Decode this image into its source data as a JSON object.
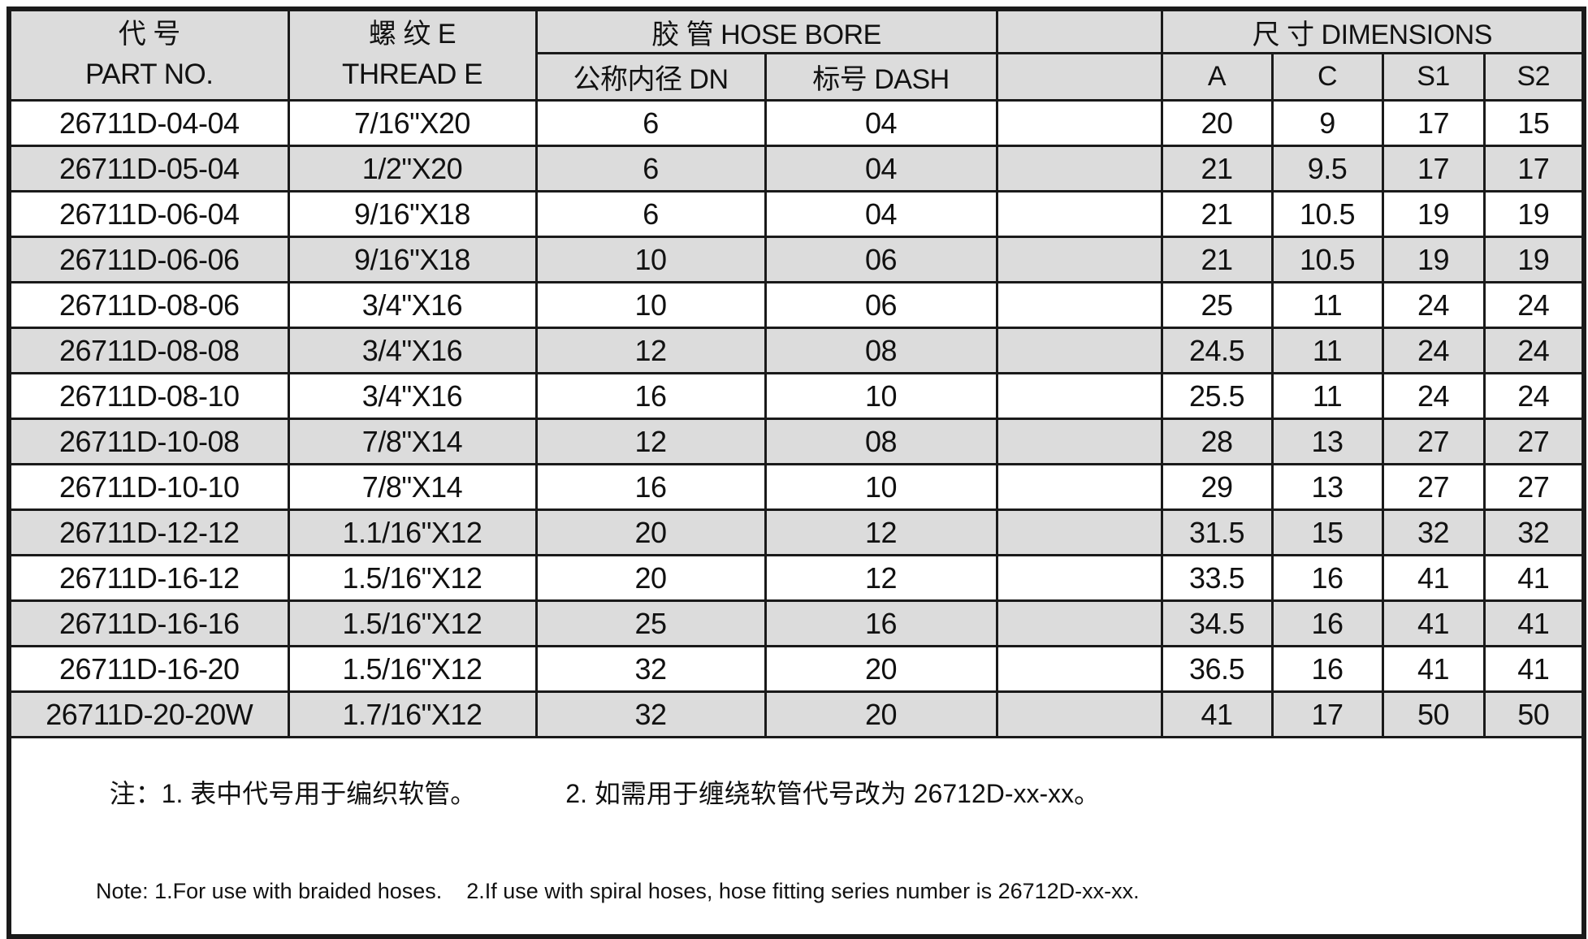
{
  "table": {
    "header": {
      "part_no_zh": "代  号",
      "part_no_en": "PART NO.",
      "thread_zh": "螺  纹 E",
      "thread_en": "THREAD E",
      "hose_bore": "胶  管 HOSE BORE",
      "dimensions": "尺 寸  DIMENSIONS",
      "dn": "公称内径 DN",
      "dash": "标号 DASH",
      "a": "A",
      "c": "C",
      "s1": "S1",
      "s2": "S2"
    },
    "rows": [
      {
        "part": "26711D-04-04",
        "thread": "7/16\"X20",
        "dn": "6",
        "dash": "04",
        "a": "20",
        "c": "9",
        "s1": "17",
        "s2": "15"
      },
      {
        "part": "26711D-05-04",
        "thread": "1/2\"X20",
        "dn": "6",
        "dash": "04",
        "a": "21",
        "c": "9.5",
        "s1": "17",
        "s2": "17"
      },
      {
        "part": "26711D-06-04",
        "thread": "9/16\"X18",
        "dn": "6",
        "dash": "04",
        "a": "21",
        "c": "10.5",
        "s1": "19",
        "s2": "19"
      },
      {
        "part": "26711D-06-06",
        "thread": "9/16\"X18",
        "dn": "10",
        "dash": "06",
        "a": "21",
        "c": "10.5",
        "s1": "19",
        "s2": "19"
      },
      {
        "part": "26711D-08-06",
        "thread": "3/4\"X16",
        "dn": "10",
        "dash": "06",
        "a": "25",
        "c": "11",
        "s1": "24",
        "s2": "24"
      },
      {
        "part": "26711D-08-08",
        "thread": "3/4\"X16",
        "dn": "12",
        "dash": "08",
        "a": "24.5",
        "c": "11",
        "s1": "24",
        "s2": "24"
      },
      {
        "part": "26711D-08-10",
        "thread": "3/4\"X16",
        "dn": "16",
        "dash": "10",
        "a": "25.5",
        "c": "11",
        "s1": "24",
        "s2": "24"
      },
      {
        "part": "26711D-10-08",
        "thread": "7/8\"X14",
        "dn": "12",
        "dash": "08",
        "a": "28",
        "c": "13",
        "s1": "27",
        "s2": "27"
      },
      {
        "part": "26711D-10-10",
        "thread": "7/8\"X14",
        "dn": "16",
        "dash": "10",
        "a": "29",
        "c": "13",
        "s1": "27",
        "s2": "27"
      },
      {
        "part": "26711D-12-12",
        "thread": "1.1/16\"X12",
        "dn": "20",
        "dash": "12",
        "a": "31.5",
        "c": "15",
        "s1": "32",
        "s2": "32"
      },
      {
        "part": "26711D-16-12",
        "thread": "1.5/16\"X12",
        "dn": "20",
        "dash": "12",
        "a": "33.5",
        "c": "16",
        "s1": "41",
        "s2": "41"
      },
      {
        "part": "26711D-16-16",
        "thread": "1.5/16\"X12",
        "dn": "25",
        "dash": "16",
        "a": "34.5",
        "c": "16",
        "s1": "41",
        "s2": "41"
      },
      {
        "part": "26711D-16-20",
        "thread": "1.5/16\"X12",
        "dn": "32",
        "dash": "20",
        "a": "36.5",
        "c": "16",
        "s1": "41",
        "s2": "41"
      },
      {
        "part": "26711D-20-20W",
        "thread": "1.7/16\"X12",
        "dn": "32",
        "dash": "20",
        "a": "41",
        "c": "17",
        "s1": "50",
        "s2": "50"
      }
    ],
    "notes": {
      "zh1": "注：1. 表中代号用于编织软管。",
      "zh2": "2. 如需用于缠绕软管代号改为 26712D-xx-xx。",
      "en1": "Note: 1.For use with braided hoses.",
      "en2": "2.If use with spiral hoses, hose fitting series number is 26712D-xx-xx."
    }
  },
  "colors": {
    "row_alt_fill": "#dcdcdc",
    "border": "#1a1a1a",
    "background": "#ffffff"
  }
}
